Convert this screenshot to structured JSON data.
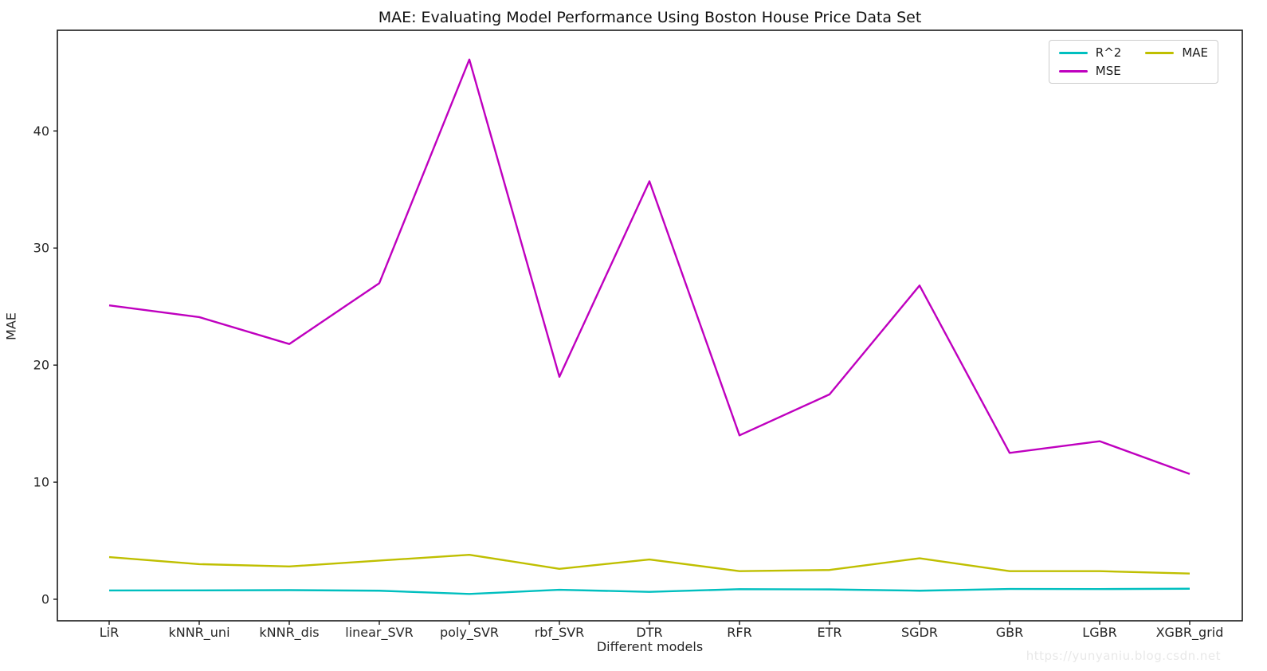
{
  "figure": {
    "background": "#ffffff"
  },
  "watermark": {
    "text": "https://yunyaniu.blog.csdn.net",
    "color": "#e8e8e8"
  },
  "axes": {
    "spine_color": "#1a1a1a",
    "tick_color": "#1a1a1a",
    "tick_label_color": "#262626"
  },
  "chart_data": {
    "type": "line",
    "title": "MAE: Evaluating Model Performance Using Boston House Price Data Set",
    "xlabel": "Different models",
    "ylabel": "MAE",
    "categories": [
      "LiR",
      "kNNR_uni",
      "kNNR_dis",
      "linear_SVR",
      "poly_SVR",
      "rbf_SVR",
      "DTR",
      "RFR",
      "ETR",
      "SGDR",
      "GBR",
      "LGBR",
      "XGBR_grid"
    ],
    "series": [
      {
        "name": "R^2",
        "color": "#00bfbf",
        "values": [
          0.75,
          0.76,
          0.78,
          0.73,
          0.45,
          0.81,
          0.63,
          0.86,
          0.84,
          0.73,
          0.88,
          0.87,
          0.9
        ]
      },
      {
        "name": "MSE",
        "color": "#bf00bf",
        "values": [
          25.1,
          24.1,
          21.8,
          27.0,
          46.1,
          19.0,
          35.7,
          14.0,
          17.5,
          26.8,
          12.5,
          13.5,
          10.7
        ]
      },
      {
        "name": "MAE",
        "color": "#bfbf00",
        "values": [
          3.6,
          3.0,
          2.8,
          3.3,
          3.8,
          2.6,
          3.4,
          2.4,
          2.5,
          3.5,
          2.4,
          2.4,
          2.2
        ]
      }
    ],
    "ylim": [
      -1.84,
      48.6
    ],
    "yticks": [
      0,
      10,
      20,
      30,
      40
    ],
    "grid": false,
    "legend_position": "upper right",
    "legend_columns": 2
  }
}
